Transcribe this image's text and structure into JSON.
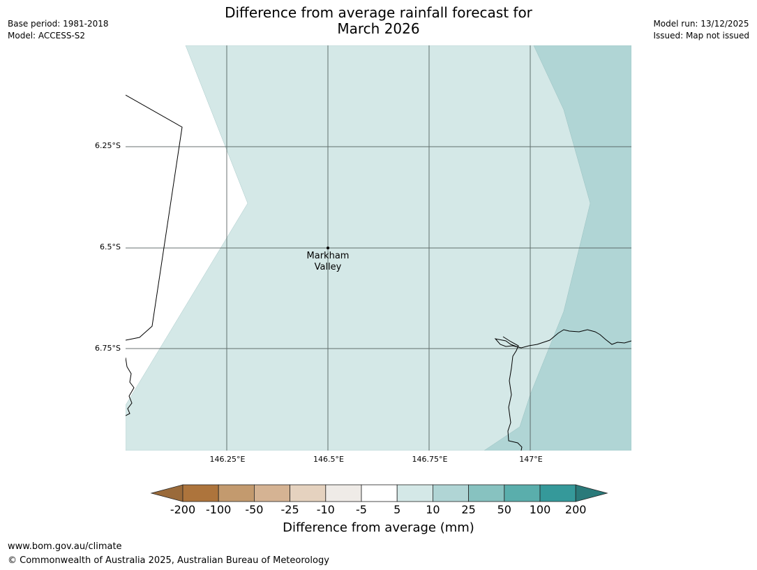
{
  "title": {
    "line1": "Difference from average rainfall forecast for",
    "line2": "March 2026"
  },
  "meta_left": {
    "base_period": "Base period: 1981-2018",
    "model": "Model: ACCESS-S2"
  },
  "meta_right": {
    "model_run": "Model run: 13/12/2025",
    "issued": "Issued: Map not issued"
  },
  "map": {
    "location_label_line1": "Markham",
    "location_label_line2": "Valley",
    "lat_labels": [
      "6.25°S",
      "6.5°S",
      "6.75°S"
    ],
    "lon_labels": [
      "146.25°E",
      "146.5°E",
      "146.75°E",
      "147°E"
    ]
  },
  "colorbar": {
    "title": "Difference from average (mm)",
    "tick_labels": [
      "-200",
      "-100",
      "-50",
      "-25",
      "-10",
      "-5",
      "5",
      "10",
      "25",
      "50",
      "100",
      "200"
    ],
    "colors": [
      "#9a6a3a",
      "#ad743c",
      "#c39a6e",
      "#d5b393",
      "#e5d2bf",
      "#efebe7",
      "#ffffff",
      "#d4e8e7",
      "#b0d5d5",
      "#87c2c0",
      "#5aaeac",
      "#35999a",
      "#2a7a7a"
    ]
  },
  "footer": {
    "url": "www.bom.gov.au/climate",
    "copyright": "© Commonwealth of Australia 2025, Australian Bureau of Meteorology"
  }
}
